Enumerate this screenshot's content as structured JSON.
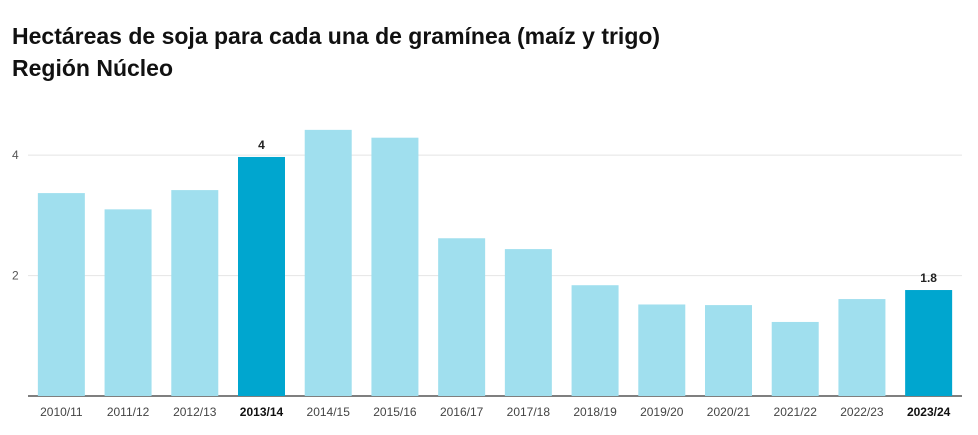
{
  "chart_data": {
    "type": "bar",
    "title": "Hectáreas de soja para cada una de gramínea (maíz y trigo)",
    "subtitle": "Región Núcleo",
    "categories": [
      "2010/11",
      "2011/12",
      "2012/13",
      "2013/14",
      "2014/15",
      "2015/16",
      "2016/17",
      "2017/18",
      "2018/19",
      "2019/20",
      "2020/21",
      "2021/22",
      "2022/23",
      "2023/24"
    ],
    "values": [
      3.37,
      3.1,
      3.42,
      3.97,
      4.42,
      4.29,
      2.62,
      2.44,
      1.84,
      1.52,
      1.51,
      1.23,
      1.61,
      1.76
    ],
    "highlighted": [
      "2013/14",
      "2023/24"
    ],
    "data_labels": [
      {
        "category": "2013/14",
        "text": "4"
      },
      {
        "category": "2023/24",
        "text": "1.8"
      }
    ],
    "y_ticks": [
      2,
      4
    ],
    "y_tick_labels": [
      "2",
      "4"
    ],
    "ylim": [
      0,
      4.75
    ],
    "xlabel": "",
    "ylabel": "",
    "grid": true,
    "colors": {
      "bar": "#a0dfee",
      "highlight": "#00a6cf",
      "grid": "#e4e4e4",
      "baseline": "#333333"
    }
  }
}
